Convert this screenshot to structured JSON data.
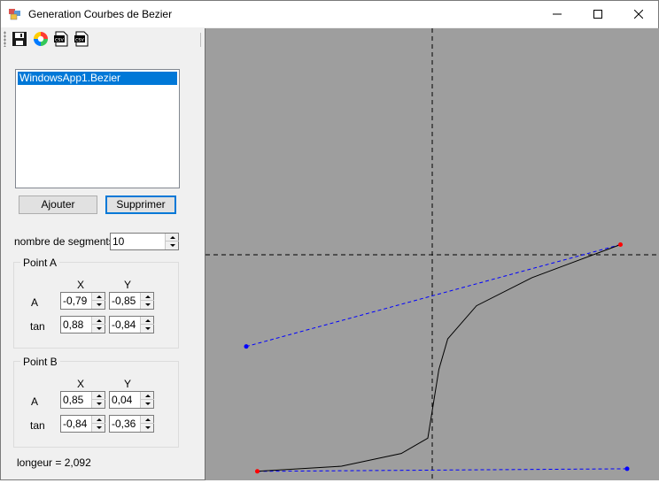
{
  "window": {
    "title": "Generation Courbes de Bezier",
    "controls": {
      "minimize": "minimize-icon",
      "maximize": "maximize-icon",
      "close": "close-icon"
    }
  },
  "toolbar": {
    "tools": [
      {
        "name": "save-tool",
        "icon": "floppy-disk-icon"
      },
      {
        "name": "color-tool",
        "icon": "color-wheel-icon"
      },
      {
        "name": "csv-export-tool-1",
        "icon": "csv-icon",
        "label": "csv"
      },
      {
        "name": "csv-export-tool-2",
        "icon": "csv-icon",
        "label": "csv"
      }
    ]
  },
  "curve_list": {
    "items": [
      "WindowsApp1.Bezier"
    ],
    "selected_index": 0
  },
  "buttons": {
    "add": "Ajouter",
    "remove": "Supprimer"
  },
  "segments": {
    "label": "nombre de segments",
    "value": "10"
  },
  "point_a": {
    "title": "Point A",
    "col_x": "X",
    "col_y": "Y",
    "row_point": "A",
    "row_tan": "tan",
    "point_x": "-0,79",
    "point_y": "-0,85",
    "tan_x": "0,88",
    "tan_y": "-0,84"
  },
  "point_b": {
    "title": "Point B",
    "col_x": "X",
    "col_y": "Y",
    "row_point": "A",
    "row_tan": "tan",
    "point_x": "0,85",
    "point_y": "0,04",
    "tan_x": "-0,84",
    "tan_y": "-0,36"
  },
  "length": {
    "text": "longeur = 2,092"
  },
  "canvas": {
    "background": "#9e9e9e",
    "curve_color": "#000000",
    "tangent_color": "#0000ff",
    "endpoint_color": "#ff0000",
    "axis_color": "#000000",
    "curve_points": [
      [
        -0.79,
        -0.85
      ],
      [
        -0.41,
        -0.83
      ],
      [
        -0.14,
        -0.78
      ],
      [
        -0.02,
        -0.72
      ],
      [
        0.03,
        -0.45
      ],
      [
        0.07,
        -0.33
      ],
      [
        0.2,
        -0.2
      ],
      [
        0.45,
        -0.09
      ],
      [
        0.85,
        0.04
      ]
    ],
    "tangent_a": {
      "from": [
        -0.79,
        -0.85
      ],
      "to": [
        0.88,
        -0.84
      ]
    },
    "tangent_b": {
      "from": [
        0.85,
        0.04
      ],
      "to": [
        -0.84,
        -0.36
      ]
    }
  }
}
